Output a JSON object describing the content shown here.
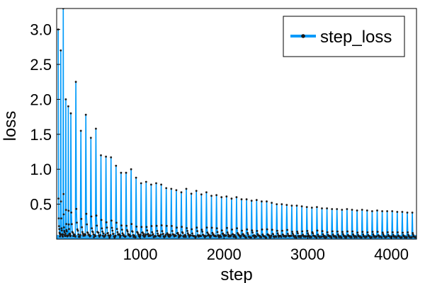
{
  "chart_data": {
    "type": "line",
    "title": "",
    "xlabel": "step",
    "ylabel": "loss",
    "xlim": [
      1,
      4300
    ],
    "ylim": [
      0.0,
      3.3
    ],
    "x_ticks": [
      1000,
      2000,
      3000,
      4000
    ],
    "y_ticks": [
      0.5,
      1.0,
      1.5,
      2.0,
      2.5,
      3.0
    ],
    "x_tick_labels": [
      "1000",
      "2000",
      "3000",
      "4000"
    ],
    "y_tick_labels": [
      "0.5",
      "1.0",
      "1.5",
      "2.0",
      "2.5",
      "3.0"
    ],
    "grid": false,
    "legend_position": "top-right",
    "series": [
      {
        "name": "step_loss",
        "color": "#009AFA",
        "marker": "circle",
        "marker_color": "#000000",
        "x_start": 1,
        "x_end": 4300,
        "peak_interval": 60,
        "peaks": [
          [
            20,
            3.0
          ],
          [
            50,
            2.7
          ],
          [
            80,
            3.3
          ],
          [
            110,
            2.0
          ],
          [
            140,
            1.9
          ],
          [
            170,
            1.8
          ],
          [
            230,
            2.25
          ],
          [
            290,
            1.55
          ],
          [
            350,
            1.78
          ],
          [
            410,
            1.45
          ],
          [
            470,
            1.58
          ],
          [
            530,
            1.2
          ],
          [
            590,
            1.18
          ],
          [
            650,
            1.17
          ],
          [
            710,
            1.05
          ],
          [
            770,
            0.95
          ],
          [
            830,
            0.95
          ],
          [
            890,
            1.0
          ],
          [
            950,
            0.88
          ],
          [
            1010,
            0.8
          ],
          [
            1070,
            0.82
          ],
          [
            1130,
            0.78
          ],
          [
            1190,
            0.8
          ],
          [
            1250,
            0.78
          ],
          [
            1310,
            0.73
          ],
          [
            1370,
            0.72
          ],
          [
            1430,
            0.7
          ],
          [
            1490,
            0.67
          ],
          [
            1550,
            0.72
          ],
          [
            1610,
            0.65
          ],
          [
            1670,
            0.69
          ],
          [
            1730,
            0.64
          ],
          [
            1790,
            0.67
          ],
          [
            1850,
            0.62
          ],
          [
            1910,
            0.63
          ],
          [
            1970,
            0.6
          ],
          [
            2030,
            0.61
          ],
          [
            2090,
            0.58
          ],
          [
            2150,
            0.6
          ],
          [
            2210,
            0.57
          ],
          [
            2270,
            0.57
          ],
          [
            2330,
            0.55
          ],
          [
            2390,
            0.56
          ],
          [
            2450,
            0.54
          ],
          [
            2510,
            0.54
          ],
          [
            2570,
            0.52
          ],
          [
            2630,
            0.5
          ],
          [
            2690,
            0.5
          ],
          [
            2750,
            0.49
          ],
          [
            2810,
            0.48
          ],
          [
            2870,
            0.48
          ],
          [
            2930,
            0.47
          ],
          [
            2990,
            0.46
          ],
          [
            3050,
            0.45
          ],
          [
            3110,
            0.46
          ],
          [
            3170,
            0.44
          ],
          [
            3230,
            0.44
          ],
          [
            3290,
            0.43
          ],
          [
            3350,
            0.43
          ],
          [
            3410,
            0.42
          ],
          [
            3470,
            0.43
          ],
          [
            3530,
            0.42
          ],
          [
            3590,
            0.41
          ],
          [
            3650,
            0.42
          ],
          [
            3710,
            0.41
          ],
          [
            3770,
            0.4
          ],
          [
            3830,
            0.41
          ],
          [
            3890,
            0.4
          ],
          [
            3950,
            0.4
          ],
          [
            4010,
            0.4
          ],
          [
            4070,
            0.39
          ],
          [
            4130,
            0.39
          ],
          [
            4190,
            0.38
          ],
          [
            4250,
            0.38
          ]
        ],
        "baseline_floor": 0.02
      }
    ]
  }
}
